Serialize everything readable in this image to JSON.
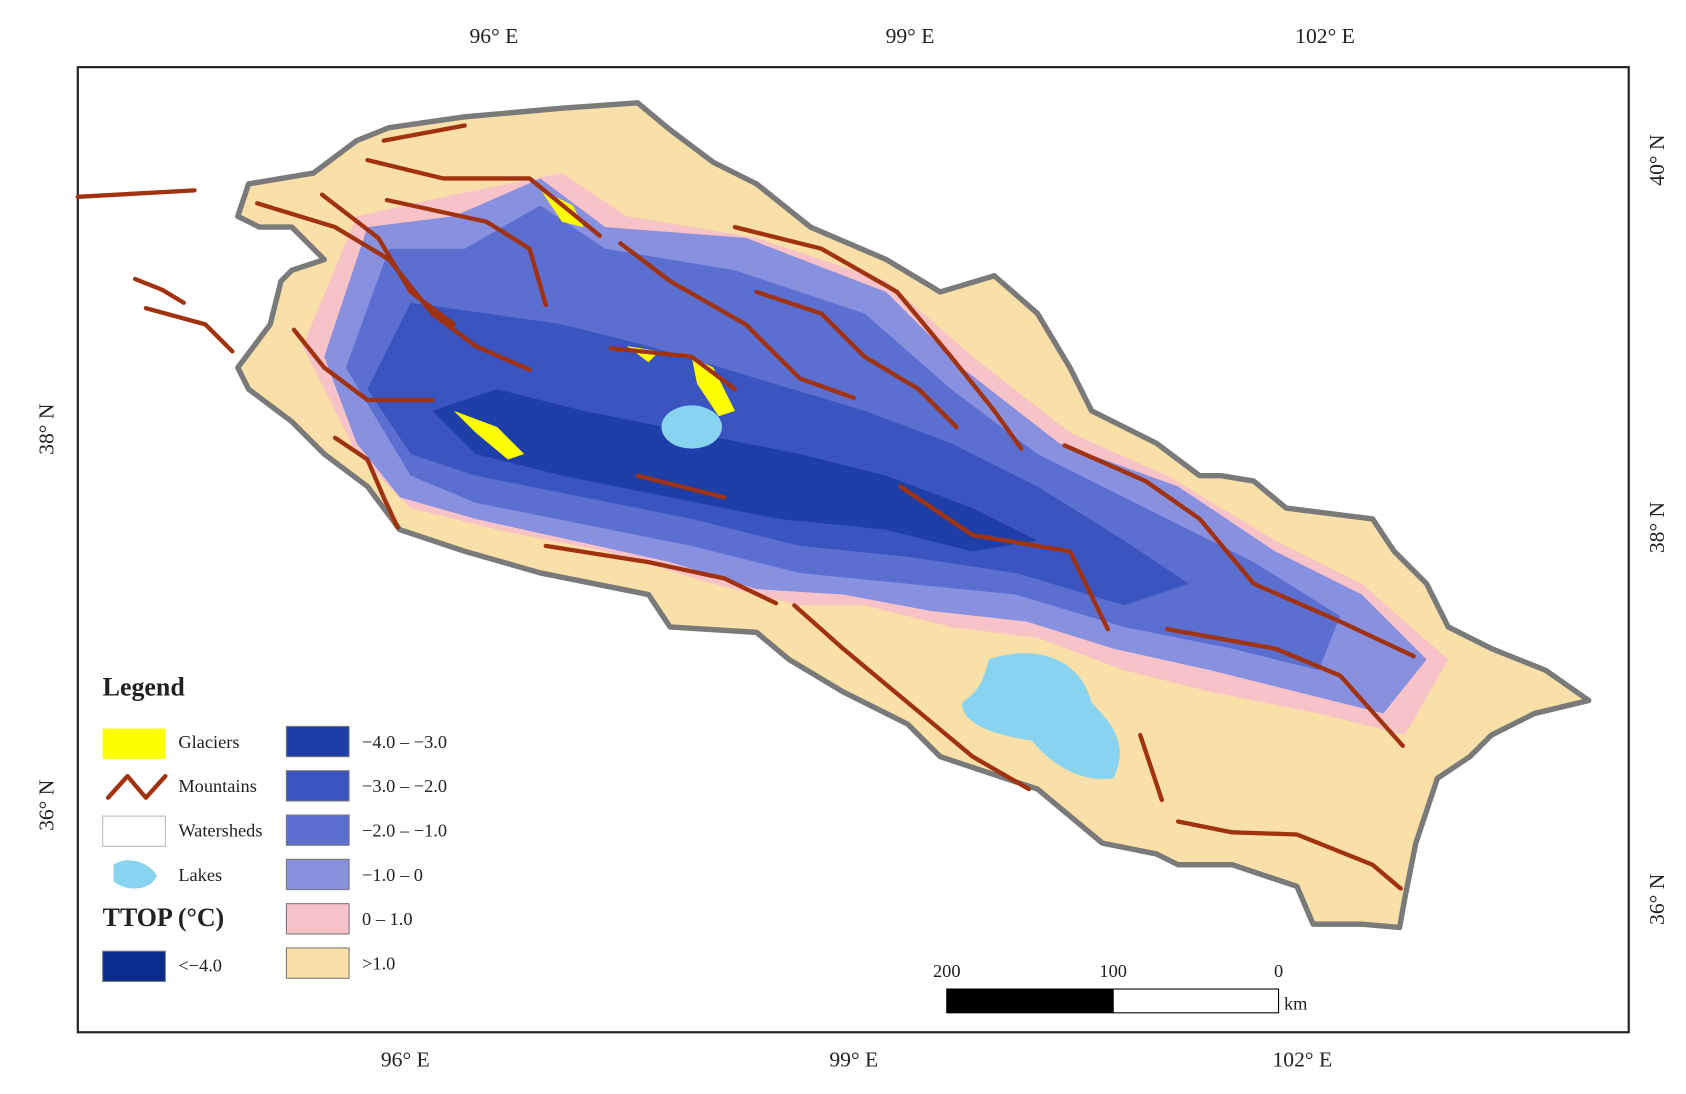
{
  "axes": {
    "top": [
      "96° E",
      "99° E",
      "102° E"
    ],
    "bottom": [
      "96° E",
      "99° E",
      "102° E"
    ],
    "left": [
      "38° N",
      "36° N"
    ],
    "right": [
      "40° N",
      "38° N",
      "36° N"
    ]
  },
  "legend": {
    "title": "Legend",
    "items": [
      "Glaciers",
      "Mountains",
      "Watersheds",
      "Lakes"
    ],
    "ttop_title": "TTOP (°C)",
    "classes": [
      "<−4.0",
      "−4.0 – −3.0",
      "−3.0 – −2.0",
      "−2.0 – −1.0",
      "−1.0 – 0",
      "0 – 1.0",
      ">1.0"
    ]
  },
  "scale_bar": {
    "labels": [
      "200",
      "100",
      "0"
    ],
    "unit": "km"
  }
}
